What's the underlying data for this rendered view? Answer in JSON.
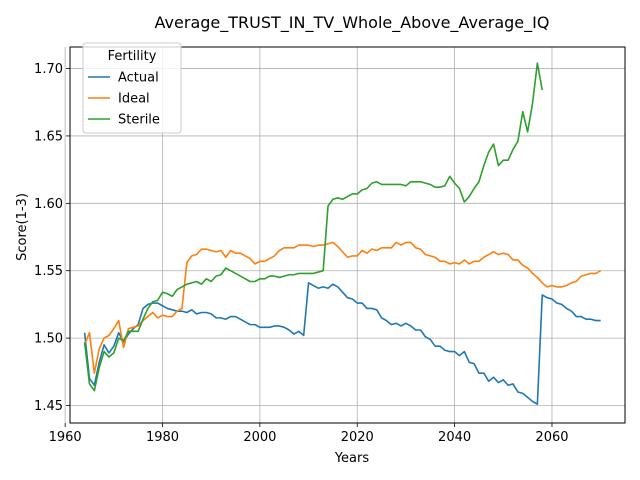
{
  "chart_data": {
    "type": "line",
    "title": "Average_TRUST_IN_TV_Whole_Above_Average_IQ",
    "xlabel": "Years",
    "ylabel": "Score(1-3)",
    "xlim": [
      1961,
      2075
    ],
    "ylim": [
      1.437,
      1.716
    ],
    "x_ticks": [
      1960,
      1980,
      2000,
      2020,
      2040,
      2060
    ],
    "y_ticks": [
      1.45,
      1.5,
      1.55,
      1.6,
      1.65,
      1.7
    ],
    "x_tick_labels": [
      "1960",
      "1980",
      "2000",
      "2020",
      "2040",
      "2060"
    ],
    "y_tick_labels": [
      "1.45",
      "1.50",
      "1.55",
      "1.60",
      "1.65",
      "1.70"
    ],
    "grid": true,
    "legend": {
      "title": "Fertility",
      "placement": "top-left"
    },
    "series": [
      {
        "name": "Actual",
        "color": "#1f77b4",
        "x": [
          1964,
          1965,
          1966,
          1967,
          1968,
          1969,
          1970,
          1971,
          1972,
          1973,
          1974,
          1975,
          1976,
          1977,
          1978,
          1979,
          1980,
          1981,
          1982,
          1983,
          1984,
          1985,
          1986,
          1987,
          1988,
          1989,
          1990,
          1991,
          1992,
          1993,
          1994,
          1995,
          1996,
          1997,
          1998,
          1999,
          2000,
          2001,
          2002,
          2003,
          2004,
          2005,
          2006,
          2007,
          2008,
          2009,
          2010,
          2011,
          2012,
          2013,
          2014,
          2015,
          2016,
          2017,
          2018,
          2019,
          2020,
          2021,
          2022,
          2023,
          2024,
          2025,
          2026,
          2027,
          2028,
          2029,
          2030,
          2031,
          2032,
          2033,
          2034,
          2035,
          2036,
          2037,
          2038,
          2039,
          2040,
          2041,
          2042,
          2043,
          2044,
          2045,
          2046,
          2047,
          2048,
          2049,
          2050,
          2051,
          2052,
          2053,
          2054,
          2055,
          2056,
          2057,
          2058,
          2059,
          2060,
          2061,
          2062,
          2063,
          2064,
          2065,
          2066,
          2067,
          2068,
          2069,
          2070
        ],
        "y": [
          1.504,
          1.47,
          1.465,
          1.482,
          1.495,
          1.489,
          1.494,
          1.504,
          1.497,
          1.503,
          1.507,
          1.51,
          1.522,
          1.525,
          1.526,
          1.526,
          1.524,
          1.522,
          1.521,
          1.52,
          1.52,
          1.519,
          1.521,
          1.518,
          1.519,
          1.519,
          1.518,
          1.515,
          1.515,
          1.514,
          1.516,
          1.516,
          1.514,
          1.512,
          1.51,
          1.51,
          1.508,
          1.508,
          1.508,
          1.509,
          1.509,
          1.508,
          1.506,
          1.503,
          1.505,
          1.502,
          1.541,
          1.539,
          1.537,
          1.538,
          1.537,
          1.54,
          1.538,
          1.534,
          1.53,
          1.529,
          1.526,
          1.526,
          1.522,
          1.522,
          1.521,
          1.515,
          1.513,
          1.51,
          1.511,
          1.509,
          1.511,
          1.509,
          1.506,
          1.506,
          1.501,
          1.499,
          1.494,
          1.494,
          1.491,
          1.49,
          1.49,
          1.487,
          1.49,
          1.482,
          1.481,
          1.474,
          1.474,
          1.468,
          1.471,
          1.467,
          1.469,
          1.465,
          1.466,
          1.46,
          1.459,
          1.456,
          1.453,
          1.451,
          1.532,
          1.53,
          1.529,
          1.526,
          1.525,
          1.522,
          1.52,
          1.516,
          1.516,
          1.514,
          1.514,
          1.513,
          1.513
        ]
      },
      {
        "name": "Ideal",
        "color": "#ff7f0e",
        "x": [
          1964,
          1965,
          1966,
          1967,
          1968,
          1969,
          1970,
          1971,
          1972,
          1973,
          1974,
          1975,
          1976,
          1977,
          1978,
          1979,
          1980,
          1981,
          1982,
          1983,
          1984,
          1985,
          1986,
          1987,
          1988,
          1989,
          1990,
          1991,
          1992,
          1993,
          1994,
          1995,
          1996,
          1997,
          1998,
          1999,
          2000,
          2001,
          2002,
          2003,
          2004,
          2005,
          2006,
          2007,
          2008,
          2009,
          2010,
          2011,
          2012,
          2013,
          2014,
          2015,
          2016,
          2017,
          2018,
          2019,
          2020,
          2021,
          2022,
          2023,
          2024,
          2025,
          2026,
          2027,
          2028,
          2029,
          2030,
          2031,
          2032,
          2033,
          2034,
          2035,
          2036,
          2037,
          2038,
          2039,
          2040,
          2041,
          2042,
          2043,
          2044,
          2045,
          2046,
          2047,
          2048,
          2049,
          2050,
          2051,
          2052,
          2053,
          2054,
          2055,
          2056,
          2057,
          2058,
          2059,
          2060,
          2061,
          2062,
          2063,
          2064,
          2065,
          2066,
          2067,
          2068,
          2069,
          2070
        ],
        "y": [
          1.495,
          1.504,
          1.474,
          1.492,
          1.5,
          1.502,
          1.507,
          1.513,
          1.493,
          1.507,
          1.508,
          1.509,
          1.513,
          1.516,
          1.519,
          1.515,
          1.517,
          1.516,
          1.516,
          1.52,
          1.522,
          1.556,
          1.561,
          1.562,
          1.566,
          1.566,
          1.565,
          1.564,
          1.565,
          1.56,
          1.565,
          1.563,
          1.563,
          1.561,
          1.559,
          1.555,
          1.557,
          1.557,
          1.559,
          1.561,
          1.565,
          1.567,
          1.567,
          1.567,
          1.569,
          1.569,
          1.569,
          1.568,
          1.569,
          1.569,
          1.57,
          1.571,
          1.568,
          1.564,
          1.56,
          1.561,
          1.561,
          1.565,
          1.563,
          1.566,
          1.565,
          1.567,
          1.567,
          1.567,
          1.571,
          1.569,
          1.571,
          1.571,
          1.567,
          1.566,
          1.562,
          1.561,
          1.56,
          1.557,
          1.557,
          1.555,
          1.556,
          1.555,
          1.558,
          1.555,
          1.557,
          1.557,
          1.56,
          1.562,
          1.564,
          1.562,
          1.563,
          1.562,
          1.558,
          1.558,
          1.554,
          1.552,
          1.548,
          1.545,
          1.541,
          1.538,
          1.539,
          1.538,
          1.538,
          1.539,
          1.541,
          1.542,
          1.546,
          1.547,
          1.548,
          1.548,
          1.55
        ]
      },
      {
        "name": "Sterile",
        "color": "#2ca02c",
        "x": [
          1964,
          1965,
          1966,
          1967,
          1968,
          1969,
          1970,
          1971,
          1972,
          1973,
          1974,
          1975,
          1976,
          1977,
          1978,
          1979,
          1980,
          1981,
          1982,
          1983,
          1984,
          1985,
          1986,
          1987,
          1988,
          1989,
          1990,
          1991,
          1992,
          1993,
          1994,
          1995,
          1996,
          1997,
          1998,
          1999,
          2000,
          2001,
          2002,
          2003,
          2004,
          2005,
          2006,
          2007,
          2008,
          2009,
          2010,
          2011,
          2012,
          2013,
          2014,
          2015,
          2016,
          2017,
          2018,
          2019,
          2020,
          2021,
          2022,
          2023,
          2024,
          2025,
          2026,
          2027,
          2028,
          2029,
          2030,
          2031,
          2032,
          2033,
          2034,
          2035,
          2036,
          2037,
          2038,
          2039,
          2040,
          2041,
          2042,
          2043,
          2044,
          2045,
          2046,
          2047,
          2048,
          2049,
          2050,
          2051,
          2052,
          2053,
          2054,
          2055,
          2056,
          2057,
          2058
        ],
        "y": [
          1.497,
          1.466,
          1.461,
          1.478,
          1.49,
          1.486,
          1.489,
          1.5,
          1.498,
          1.505,
          1.505,
          1.505,
          1.514,
          1.522,
          1.527,
          1.528,
          1.534,
          1.533,
          1.531,
          1.536,
          1.538,
          1.54,
          1.541,
          1.542,
          1.54,
          1.544,
          1.542,
          1.546,
          1.547,
          1.552,
          1.55,
          1.548,
          1.546,
          1.544,
          1.542,
          1.542,
          1.544,
          1.544,
          1.546,
          1.546,
          1.545,
          1.546,
          1.547,
          1.547,
          1.548,
          1.548,
          1.548,
          1.548,
          1.549,
          1.55,
          1.598,
          1.603,
          1.604,
          1.603,
          1.605,
          1.607,
          1.607,
          1.61,
          1.611,
          1.615,
          1.616,
          1.614,
          1.614,
          1.614,
          1.614,
          1.614,
          1.613,
          1.616,
          1.616,
          1.616,
          1.615,
          1.614,
          1.612,
          1.612,
          1.613,
          1.62,
          1.615,
          1.611,
          1.601,
          1.605,
          1.611,
          1.616,
          1.628,
          1.638,
          1.644,
          1.628,
          1.632,
          1.632,
          1.64,
          1.646,
          1.668,
          1.653,
          1.674,
          1.704,
          1.684
        ]
      }
    ]
  }
}
